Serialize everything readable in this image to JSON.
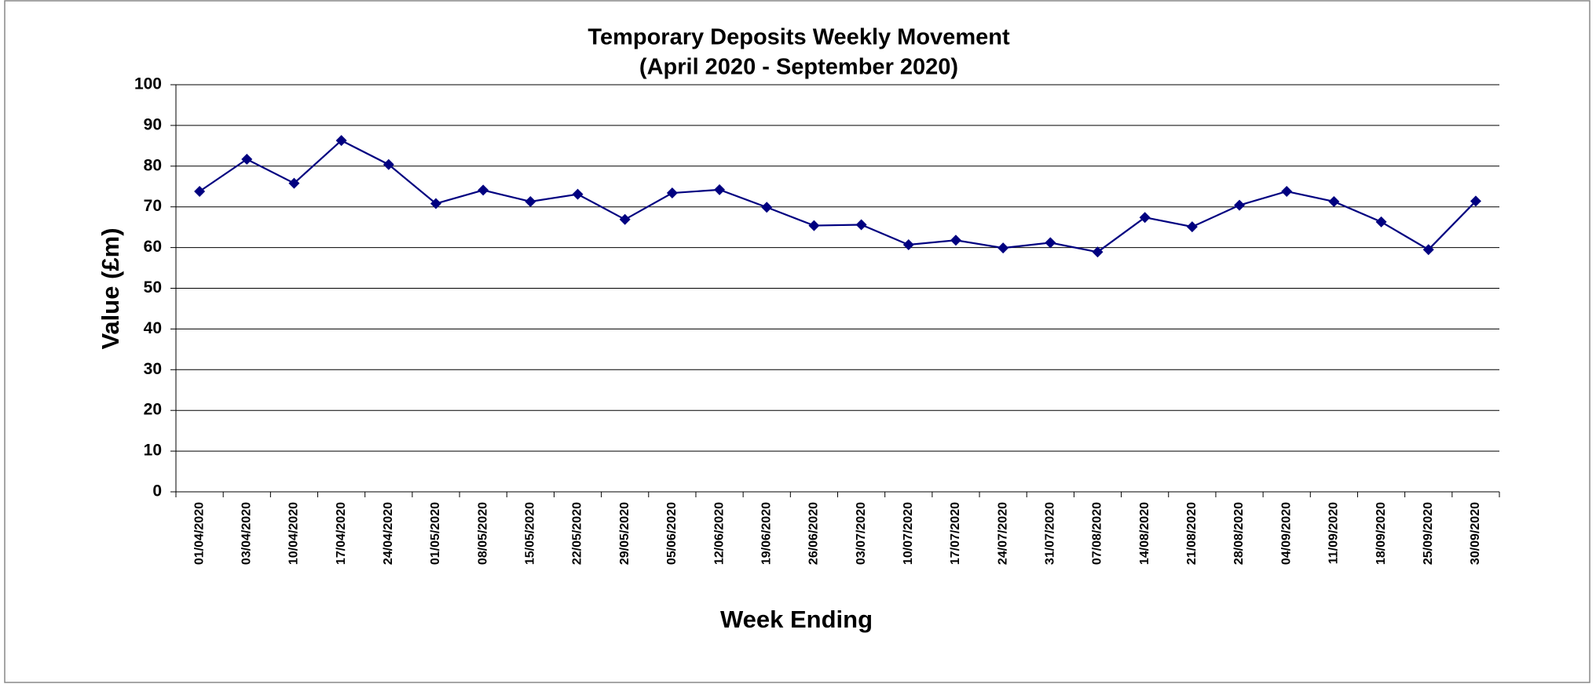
{
  "chart_data": {
    "type": "line",
    "title": "Temporary Deposits Weekly Movement",
    "subtitle": "(April 2020 - September 2020)",
    "x_label": "Week Ending",
    "y_label": "Value (£m)",
    "categories": [
      "01/04/2020",
      "03/04/2020",
      "10/04/2020",
      "17/04/2020",
      "24/04/2020",
      "01/05/2020",
      "08/05/2020",
      "15/05/2020",
      "22/05/2020",
      "29/05/2020",
      "05/06/2020",
      "12/06/2020",
      "19/06/2020",
      "26/06/2020",
      "03/07/2020",
      "10/07/2020",
      "17/07/2020",
      "24/07/2020",
      "31/07/2020",
      "07/08/2020",
      "14/08/2020",
      "21/08/2020",
      "28/08/2020",
      "04/09/2020",
      "11/09/2020",
      "18/09/2020",
      "25/09/2020",
      "30/09/2020"
    ],
    "values": [
      73.8,
      81.7,
      75.8,
      86.3,
      80.4,
      70.8,
      74.1,
      71.3,
      73.1,
      66.9,
      73.4,
      74.2,
      69.9,
      65.4,
      65.6,
      60.7,
      61.8,
      59.9,
      61.2,
      58.9,
      67.4,
      65.1,
      70.4,
      73.8,
      71.3,
      66.3,
      59.5,
      71.4
    ],
    "color": "#000080",
    "ylim": [
      0,
      100
    ],
    "yticks": [
      0,
      10,
      20,
      30,
      40,
      50,
      60,
      70,
      80,
      90,
      100
    ],
    "grid": true
  }
}
